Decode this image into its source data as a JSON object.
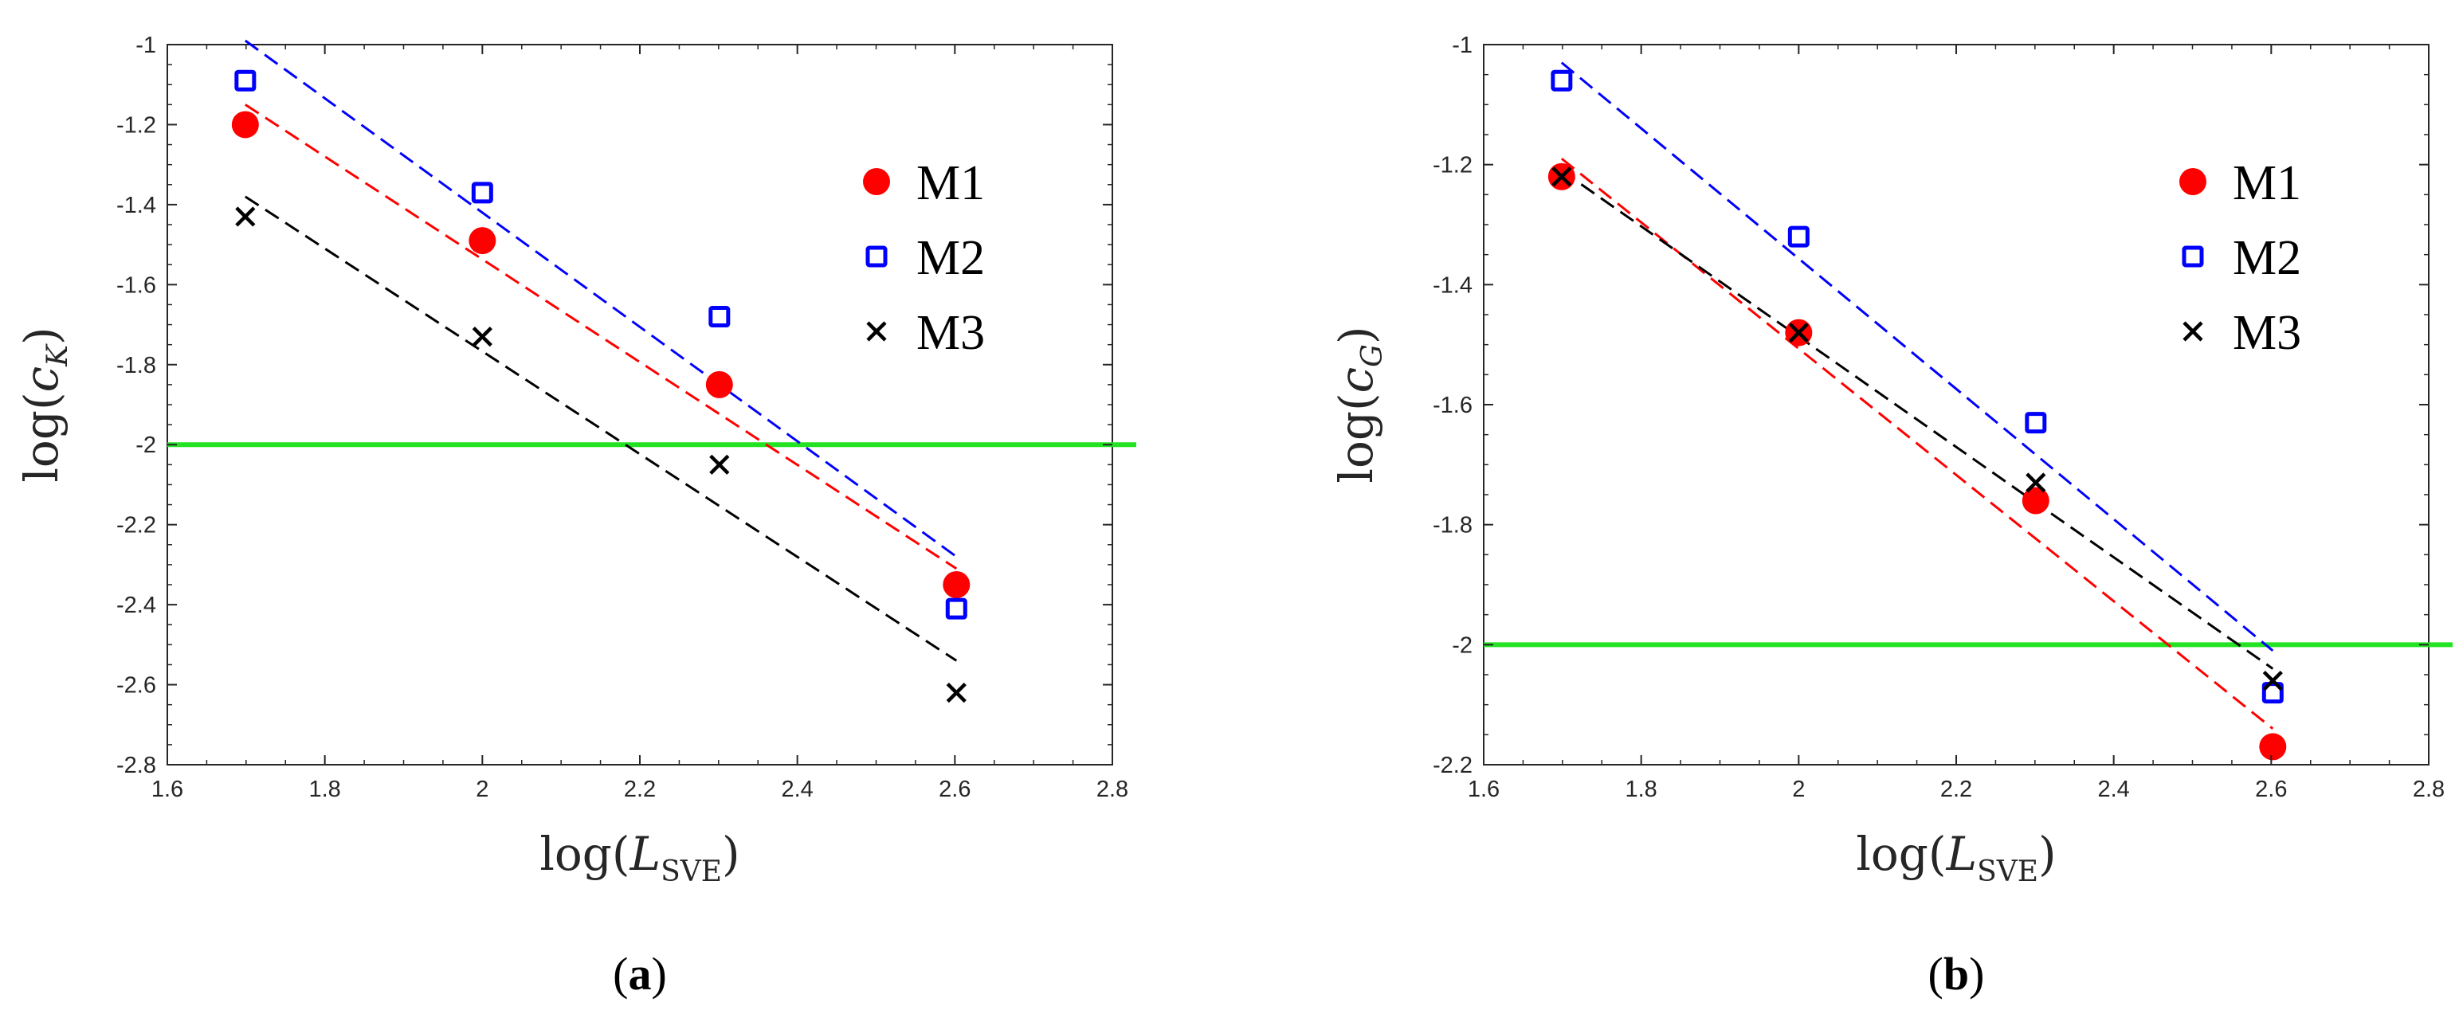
{
  "chart_data": [
    {
      "type": "scatter",
      "panel": "(a)",
      "xlabel": "log(L_SVE)",
      "ylabel": "log(c_K)",
      "xlim": [
        1.6,
        2.8
      ],
      "ylim": [
        -2.8,
        -1.0
      ],
      "xticks": [
        "1.6",
        "1.8",
        "2",
        "2.2",
        "2.4",
        "2.6",
        "2.8"
      ],
      "yticks": [
        "-1",
        "-1.2",
        "-1.4",
        "-1.6",
        "-1.8",
        "-2",
        "-2.2",
        "-2.4",
        "-2.6",
        "-2.8"
      ],
      "threshold": -2.0,
      "threshold_color": "#22e222",
      "legend_position": "top-right",
      "series": [
        {
          "name": "M1",
          "marker": "circle",
          "color": "#ff0000",
          "x": [
            1.699,
            2.0,
            2.301,
            2.602
          ],
          "y": [
            -1.2,
            -1.49,
            -1.85,
            -2.35
          ],
          "fit": {
            "x": [
              1.699,
              2.602
            ],
            "y": [
              -1.15,
              -2.31
            ]
          }
        },
        {
          "name": "M2",
          "marker": "square",
          "color": "#0000ff",
          "x": [
            1.699,
            2.0,
            2.301,
            2.602
          ],
          "y": [
            -1.09,
            -1.37,
            -1.68,
            -2.41
          ],
          "fit": {
            "x": [
              1.699,
              2.602
            ],
            "y": [
              -0.99,
              -2.28
            ]
          }
        },
        {
          "name": "M3",
          "marker": "x",
          "color": "#000000",
          "x": [
            1.699,
            2.0,
            2.301,
            2.602
          ],
          "y": [
            -1.43,
            -1.73,
            -2.05,
            -2.62
          ],
          "fit": {
            "x": [
              1.699,
              2.602
            ],
            "y": [
              -1.38,
              -2.54
            ]
          }
        }
      ]
    },
    {
      "type": "scatter",
      "panel": "(b)",
      "xlabel": "log(L_SVE)",
      "ylabel": "log(c_G)",
      "xlim": [
        1.6,
        2.8
      ],
      "ylim": [
        -2.2,
        -1.0
      ],
      "xticks": [
        "1.6",
        "1.8",
        "2",
        "2.2",
        "2.4",
        "2.6",
        "2.8"
      ],
      "yticks": [
        "-1",
        "-1.2",
        "-1.4",
        "-1.6",
        "-1.8",
        "-2",
        "-2.2"
      ],
      "threshold": -2.0,
      "threshold_color": "#22e222",
      "legend_position": "top-right",
      "series": [
        {
          "name": "M1",
          "marker": "circle",
          "color": "#ff0000",
          "x": [
            1.699,
            2.0,
            2.301,
            2.602
          ],
          "y": [
            -1.22,
            -1.48,
            -1.76,
            -2.17
          ],
          "fit": {
            "x": [
              1.699,
              2.602
            ],
            "y": [
              -1.19,
              -2.14
            ]
          }
        },
        {
          "name": "M2",
          "marker": "square",
          "color": "#0000ff",
          "x": [
            1.699,
            2.0,
            2.301,
            2.602
          ],
          "y": [
            -1.06,
            -1.32,
            -1.63,
            -2.08
          ],
          "fit": {
            "x": [
              1.699,
              2.602
            ],
            "y": [
              -1.03,
              -2.01
            ]
          }
        },
        {
          "name": "M3",
          "marker": "x",
          "color": "#000000",
          "x": [
            1.699,
            2.0,
            2.301,
            2.602
          ],
          "y": [
            -1.22,
            -1.48,
            -1.73,
            -2.06
          ],
          "fit": {
            "x": [
              1.699,
              2.602
            ],
            "y": [
              -1.21,
              -2.04
            ]
          }
        }
      ]
    }
  ]
}
